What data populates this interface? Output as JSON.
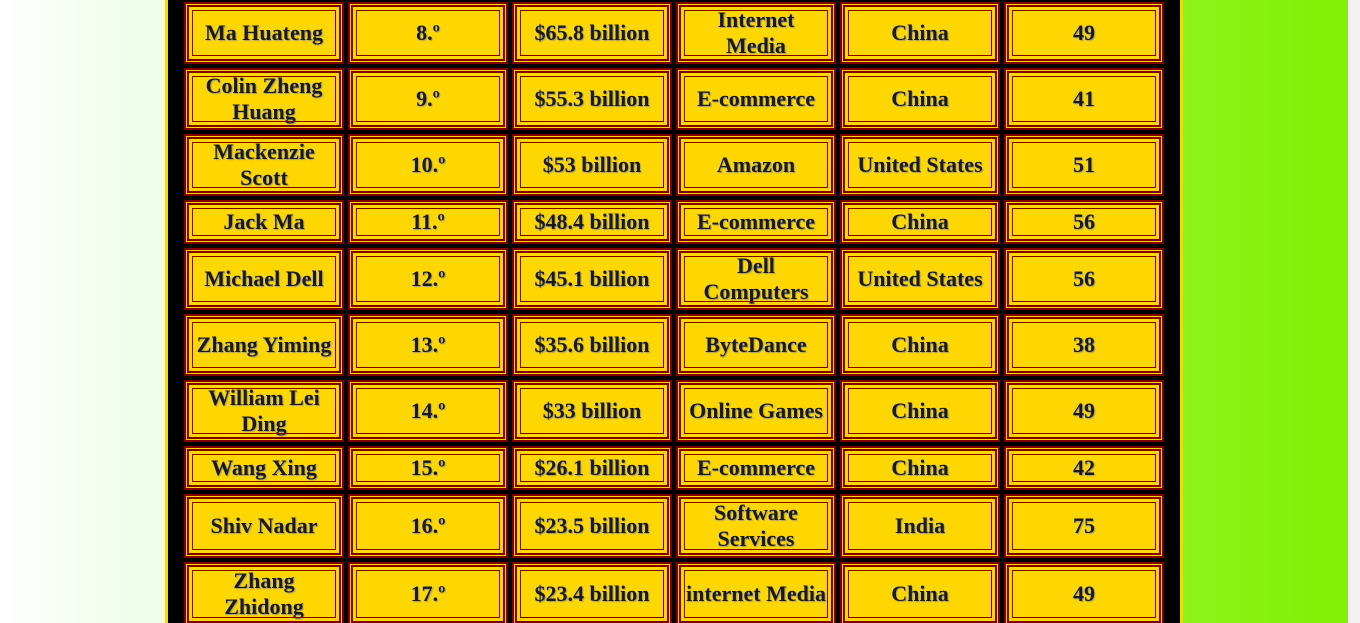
{
  "table": {
    "rows": [
      [
        "Ma Huateng",
        "8.º",
        "$65.8 billion",
        "Internet Media",
        "China",
        "49"
      ],
      [
        "Colin Zheng Huang",
        "9.º",
        "$55.3 billion",
        "E-commerce",
        "China",
        "41"
      ],
      [
        "Mackenzie Scott",
        "10.º",
        "$53 billion",
        "Amazon",
        "United States",
        "51"
      ],
      [
        "Jack Ma",
        "11.º",
        "$48.4 billion",
        "E-commerce",
        "China",
        "56"
      ],
      [
        "Michael Dell",
        "12.º",
        "$45.1 billion",
        "Dell Computers",
        "United States",
        "56"
      ],
      [
        "Zhang Yiming",
        "13.º",
        "$35.6 billion",
        "ByteDance",
        "China",
        "38"
      ],
      [
        "William Lei Ding",
        "14.º",
        "$33 billion",
        "Online Games",
        "China",
        "49"
      ],
      [
        "Wang Xing",
        "15.º",
        "$26.1 billion",
        "E-commerce",
        "China",
        "42"
      ],
      [
        "Shiv Nadar",
        "16.º",
        "$23.5 billion",
        "Software Services",
        "India",
        "75"
      ],
      [
        "Zhang Zhidong",
        "17.º",
        "$23.4 billion",
        "internet Media",
        "China",
        "49"
      ]
    ]
  }
}
